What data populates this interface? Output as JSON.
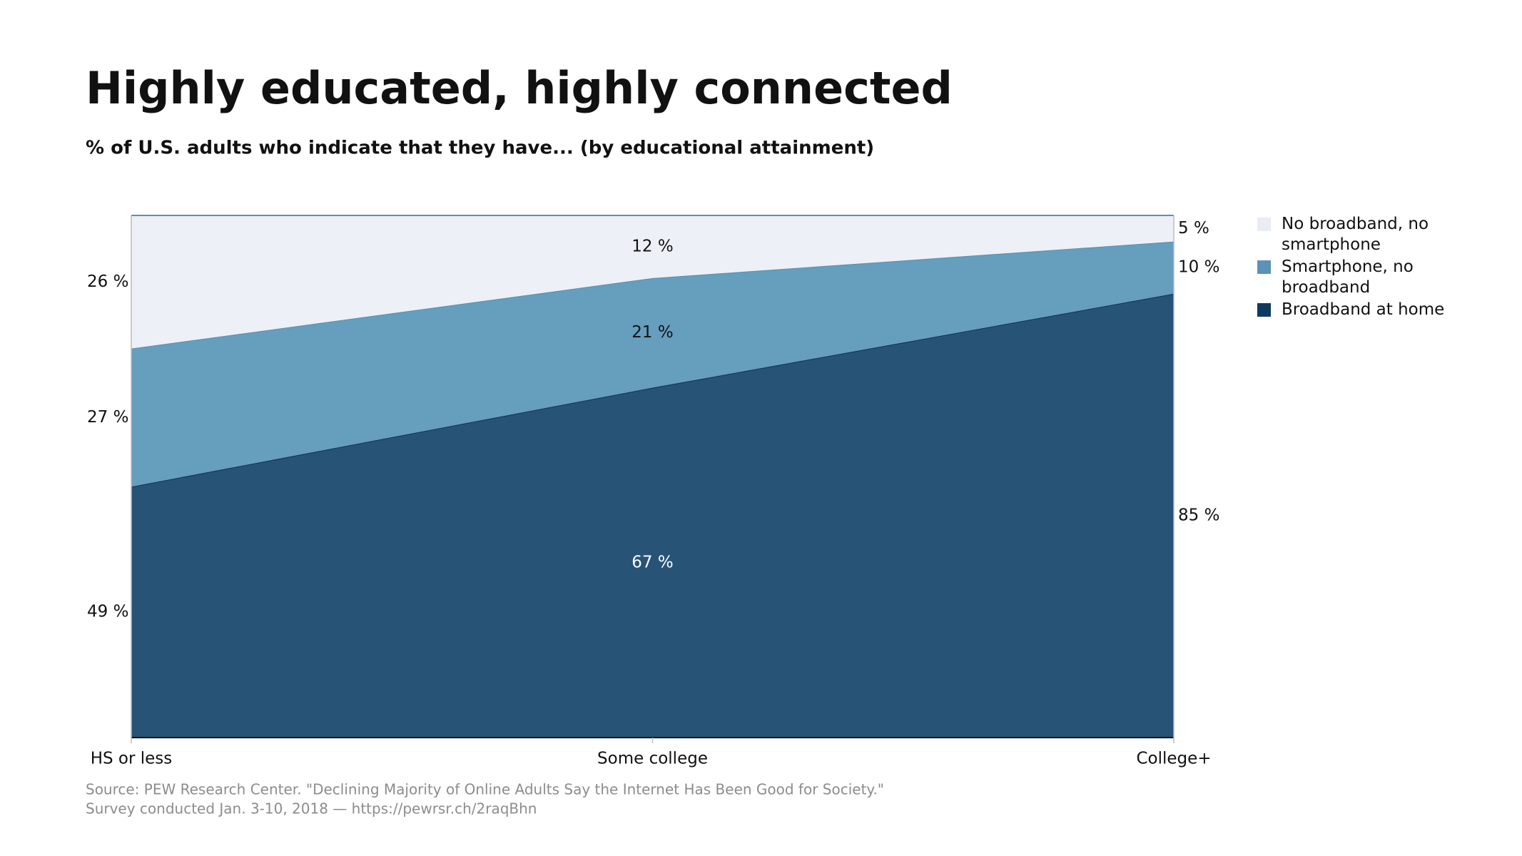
{
  "chart_data": {
    "type": "stacked-area",
    "stacking": "percent",
    "title": "Highly educated, highly connected",
    "subtitle": "% of U.S. adults who indicate that they have... (by educational attainment)",
    "categories": [
      "HS or less",
      "Some college",
      "College+"
    ],
    "ylim": [
      0,
      100
    ],
    "series": [
      {
        "name": "Broadband at home",
        "color": "#275377",
        "legend_color": "#0f3a5f",
        "values": [
          49,
          67,
          85
        ],
        "value_labels": [
          "49 %",
          "67 %",
          "85 %"
        ]
      },
      {
        "name": "Smartphone, no broadband",
        "color": "#669ebd",
        "legend_color": "#5b93b8",
        "values": [
          27,
          21,
          10
        ],
        "value_labels": [
          "27 %",
          "21 %",
          "10 %"
        ]
      },
      {
        "name": "No broadband, no smartphone",
        "color": "#eef0f7",
        "legend_color": "#e9ebf5",
        "values": [
          26,
          12,
          5
        ],
        "value_labels": [
          "26 %",
          "12 %",
          "5 %"
        ]
      }
    ],
    "source": [
      "Source: PEW Research Center. \"Declining Majority of Online Adults Say the Internet Has Been Good for Society.\"",
      "Survey conducted Jan. 3-10, 2018 — https://pewrsr.ch/2raqBhn"
    ]
  }
}
